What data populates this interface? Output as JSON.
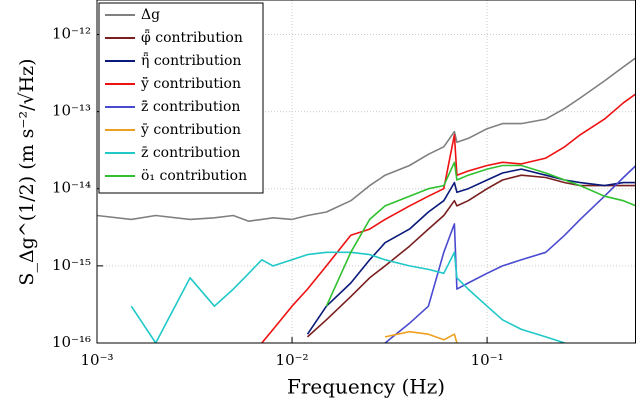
{
  "chart_data": {
    "type": "line",
    "log_x": true,
    "log_y": true,
    "grid": true,
    "legend": "upper left",
    "xlabel": "Frequency (Hz)",
    "ylabel": "S_Δg^(1/2) (m s⁻²/√Hz)",
    "xlim": [
      0.001,
      0.58
    ],
    "ylim": [
      1e-16,
      2.8e-12
    ],
    "xticks": [
      {
        "value": 0.001,
        "label": "10⁻³"
      },
      {
        "value": 0.01,
        "label": "10⁻²"
      },
      {
        "value": 0.1,
        "label": "10⁻¹"
      }
    ],
    "yticks": [
      {
        "value": 1e-16,
        "label": "10⁻¹⁶"
      },
      {
        "value": 1e-15,
        "label": "10⁻¹⁵"
      },
      {
        "value": 1e-14,
        "label": "10⁻¹⁴"
      },
      {
        "value": 1e-13,
        "label": "10⁻¹³"
      },
      {
        "value": 1e-12,
        "label": "10⁻¹²"
      }
    ],
    "x": [
      0.001,
      0.0015,
      0.002,
      0.003,
      0.004,
      0.005,
      0.006,
      0.007,
      0.008,
      0.01,
      0.012,
      0.015,
      0.02,
      0.025,
      0.03,
      0.04,
      0.05,
      0.06,
      0.068,
      0.07,
      0.08,
      0.1,
      0.12,
      0.15,
      0.2,
      0.25,
      0.3,
      0.4,
      0.5,
      0.58
    ],
    "series": [
      {
        "name": "Δg",
        "color": "#808080",
        "values": [
          4.5e-15,
          4e-15,
          4.5e-15,
          4e-15,
          4.2e-15,
          4.5e-15,
          3.8e-15,
          4e-15,
          4.2e-15,
          4e-15,
          4.5e-15,
          5e-15,
          7e-15,
          1.1e-14,
          1.5e-14,
          2e-14,
          2.8e-14,
          3.5e-14,
          5.5e-14,
          4e-14,
          4.5e-14,
          6e-14,
          7e-14,
          7e-14,
          8e-14,
          1.1e-13,
          1.5e-13,
          2.5e-13,
          3.8e-13,
          5e-13
        ]
      },
      {
        "name": "φ̈̄ contribution",
        "color": "#7a1f1f",
        "values": [
          null,
          null,
          null,
          null,
          null,
          null,
          null,
          null,
          null,
          null,
          1.2e-16,
          2e-16,
          4e-16,
          7e-16,
          1e-15,
          1.8e-15,
          3e-15,
          4.5e-15,
          7e-15,
          6e-15,
          7e-15,
          1e-14,
          1.3e-14,
          1.5e-14,
          1.4e-14,
          1.2e-14,
          1.1e-14,
          1.1e-14,
          1.1e-14,
          1.1e-14
        ]
      },
      {
        "name": "η̈̄ contribution",
        "color": "#0a1a7a",
        "values": [
          null,
          null,
          null,
          null,
          null,
          null,
          null,
          null,
          null,
          null,
          1.3e-16,
          3e-16,
          6e-16,
          1.2e-15,
          2e-15,
          3e-15,
          5e-15,
          7e-15,
          1.2e-14,
          9e-15,
          1e-14,
          1.3e-14,
          1.6e-14,
          1.8e-14,
          1.5e-14,
          1.3e-14,
          1.2e-14,
          1.1e-14,
          1.2e-14,
          1.2e-14
        ]
      },
      {
        "name": "ÿ̄ contribution",
        "color": "#ee1111",
        "values": [
          null,
          null,
          null,
          null,
          null,
          null,
          null,
          1e-16,
          1.5e-16,
          3e-16,
          5e-16,
          1e-15,
          2.5e-15,
          3e-15,
          4e-15,
          6e-15,
          8e-15,
          1e-14,
          5e-14,
          1.5e-14,
          1.7e-14,
          2e-14,
          2.2e-14,
          2.1e-14,
          2.5e-14,
          3.5e-14,
          5e-14,
          8e-14,
          1.3e-13,
          1.7e-13
        ]
      },
      {
        "name": "z̈̄ contribution",
        "color": "#4a4ad0",
        "values": [
          null,
          null,
          null,
          null,
          null,
          null,
          null,
          null,
          null,
          null,
          null,
          null,
          null,
          null,
          1e-16,
          1.8e-16,
          3e-16,
          1.5e-15,
          3.5e-15,
          5e-16,
          6e-16,
          8e-16,
          1e-15,
          1.2e-15,
          1.5e-15,
          2.5e-15,
          4e-15,
          8e-15,
          1.4e-14,
          2e-14
        ]
      },
      {
        "name": "ȳ contribution",
        "color": "#f0a020",
        "values": [
          null,
          null,
          null,
          null,
          null,
          null,
          null,
          null,
          null,
          null,
          null,
          null,
          null,
          null,
          1.2e-16,
          1.4e-16,
          1.3e-16,
          1.1e-16,
          1.3e-16,
          1e-16,
          null,
          null,
          null,
          null,
          null,
          null,
          null,
          null,
          null,
          null
        ]
      },
      {
        "name": "z̄ contribution",
        "color": "#20c8c8",
        "values": [
          null,
          3e-16,
          1e-16,
          7e-16,
          3e-16,
          5e-16,
          8e-16,
          1.2e-15,
          1e-15,
          1.2e-15,
          1.4e-15,
          1.5e-15,
          1.5e-15,
          1.4e-15,
          1.2e-15,
          1e-15,
          9e-16,
          8e-16,
          1.5e-15,
          7e-16,
          5e-16,
          3e-16,
          2e-16,
          1.5e-16,
          1.2e-16,
          1e-16,
          null,
          null,
          null,
          null
        ]
      },
      {
        "name": "ö₁ contribution",
        "color": "#30c030",
        "values": [
          null,
          null,
          null,
          null,
          null,
          null,
          null,
          null,
          null,
          null,
          null,
          3e-16,
          1.5e-15,
          4e-15,
          6e-15,
          8e-15,
          1e-14,
          1.1e-14,
          2.2e-14,
          1.3e-14,
          1.5e-14,
          1.8e-14,
          2e-14,
          2e-14,
          1.6e-14,
          1.3e-14,
          1.1e-14,
          8e-15,
          7e-15,
          6e-15
        ]
      }
    ]
  }
}
